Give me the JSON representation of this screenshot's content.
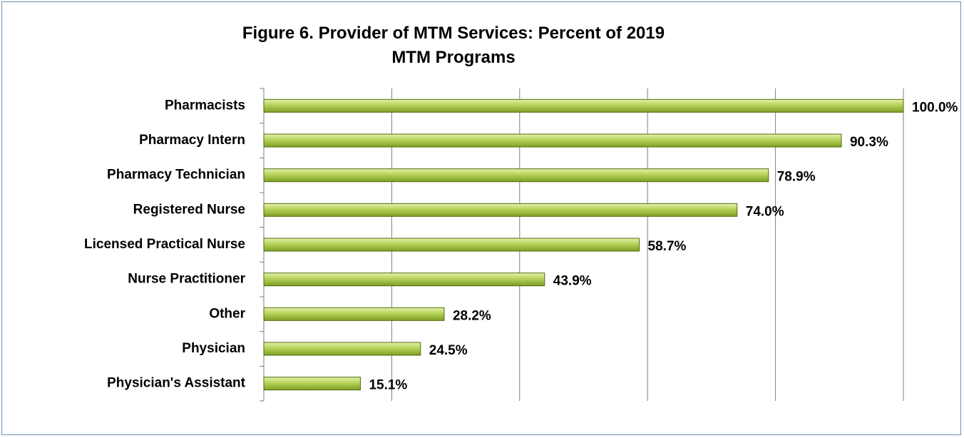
{
  "chart_data": {
    "type": "bar",
    "orientation": "horizontal",
    "title": "Figure 6. Provider of MTM Services: Percent of 2019 MTM Programs",
    "categories": [
      "Pharmacists",
      "Pharmacy Intern",
      "Pharmacy Technician",
      "Registered Nurse",
      "Licensed Practical Nurse",
      "Nurse Practitioner",
      "Other",
      "Physician",
      "Physician's Assistant"
    ],
    "values": [
      100.0,
      90.3,
      78.9,
      74.0,
      58.7,
      43.9,
      28.2,
      24.5,
      15.1
    ],
    "value_labels": [
      "100.0%",
      "90.3%",
      "78.9%",
      "74.0%",
      "58.7%",
      "43.9%",
      "28.2%",
      "24.5%",
      "15.1%"
    ],
    "color": "#9bbb3b",
    "xlim": [
      0,
      100
    ],
    "xticks": [
      0,
      20,
      40,
      60,
      80,
      100
    ],
    "grid": true
  }
}
